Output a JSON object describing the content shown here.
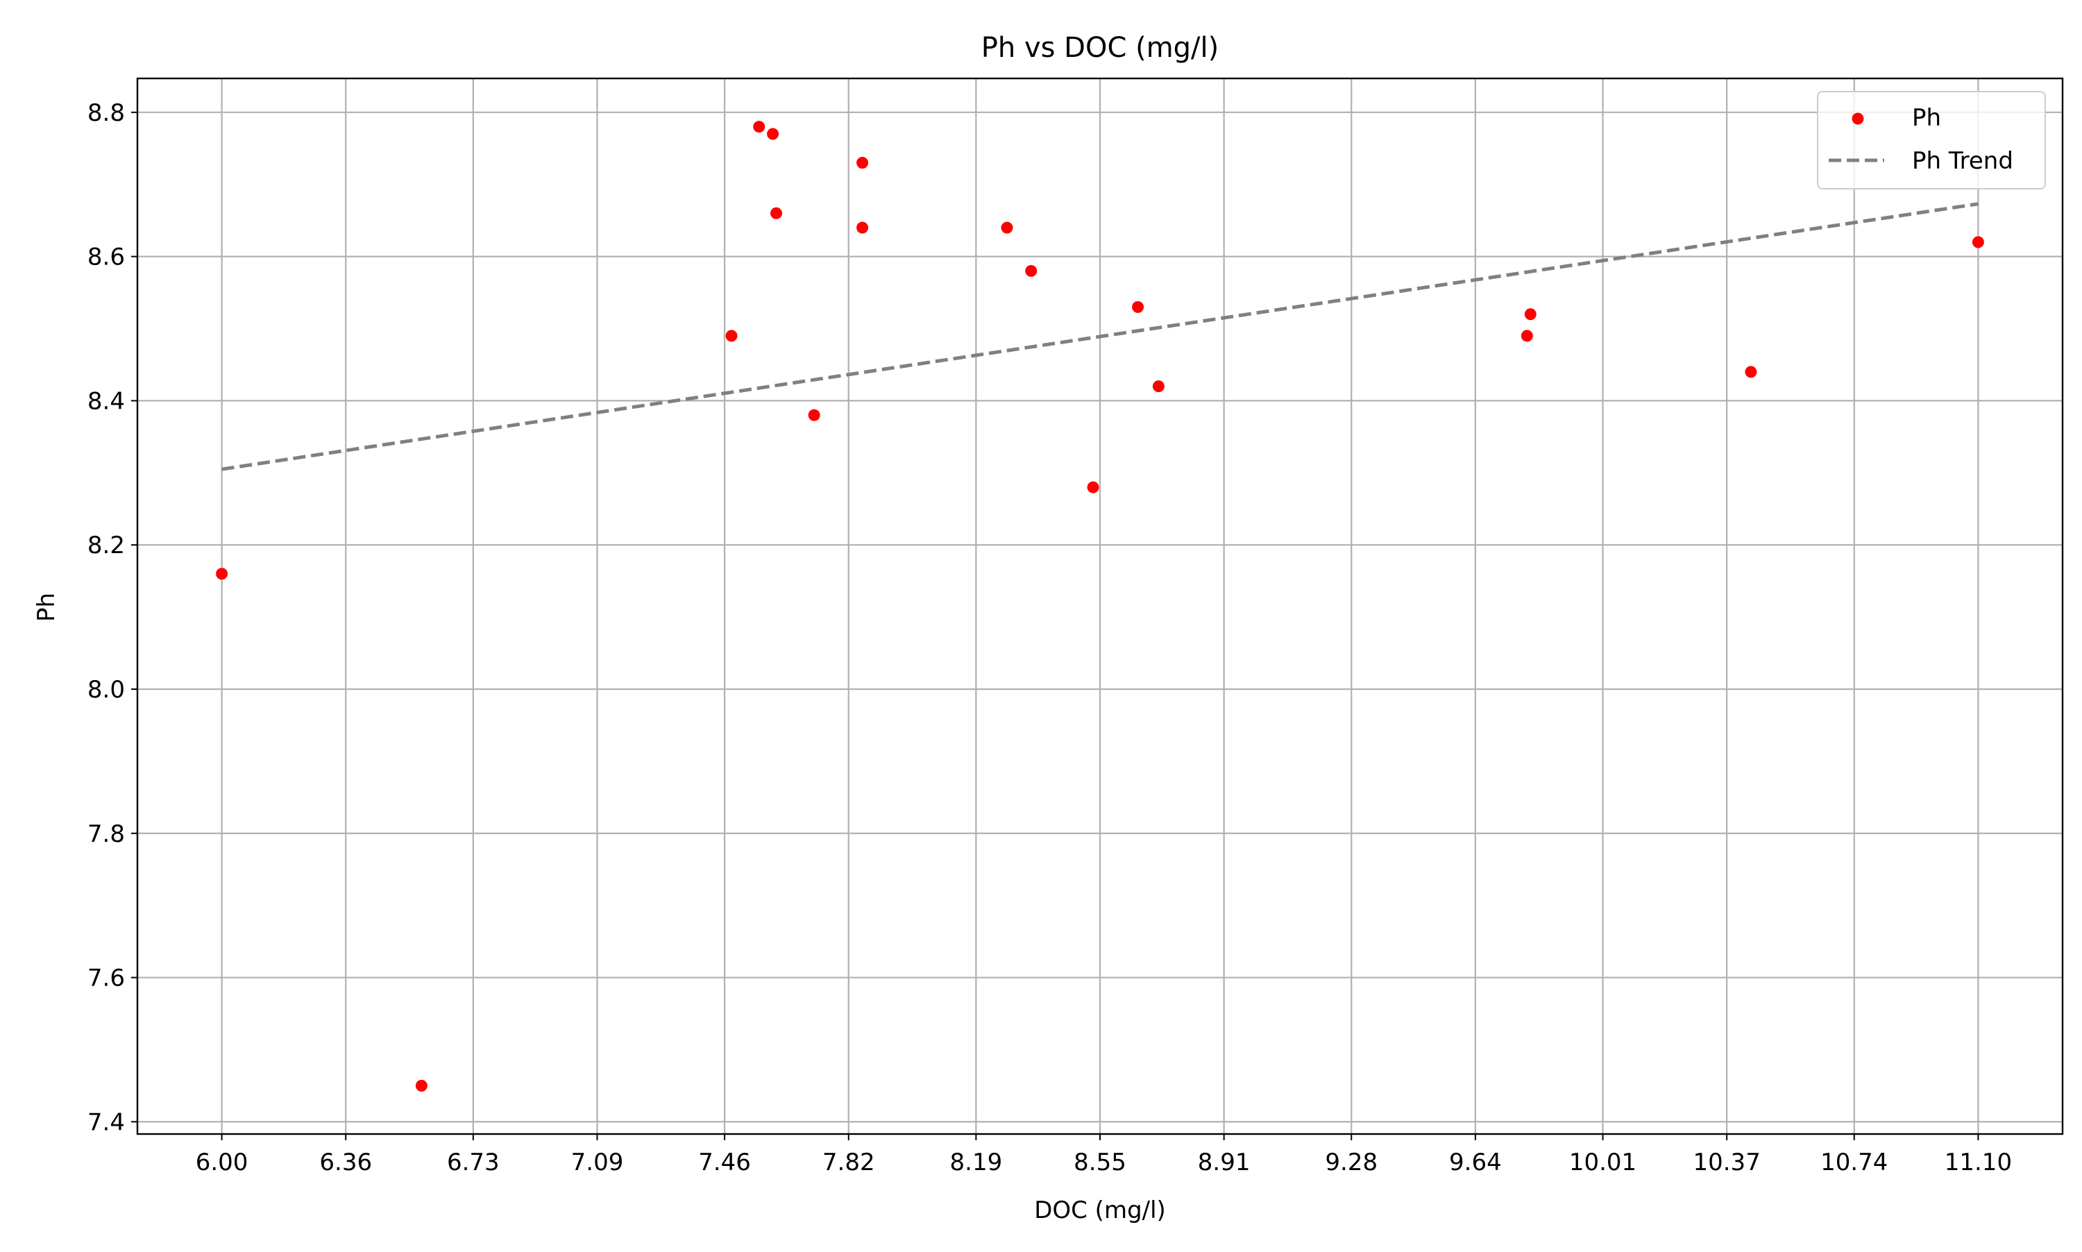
{
  "chart_data": {
    "type": "scatter",
    "title": "Ph vs DOC (mg/l)",
    "xlabel": "DOC (mg/l)",
    "ylabel": "Ph",
    "xlim": [
      5.755,
      11.345
    ],
    "ylim": [
      7.383,
      8.847
    ],
    "x_ticks": [
      "6.00",
      "6.36",
      "6.73",
      "7.09",
      "7.46",
      "7.82",
      "8.19",
      "8.55",
      "8.91",
      "9.28",
      "9.64",
      "10.01",
      "10.37",
      "10.74",
      "11.10"
    ],
    "y_ticks": [
      "7.4",
      "7.6",
      "7.8",
      "8.0",
      "8.2",
      "8.4",
      "8.6",
      "8.8"
    ],
    "grid": true,
    "legend_position": "upper right",
    "series": [
      {
        "name": "Ph",
        "kind": "scatter",
        "color": "#ff0000",
        "points": [
          {
            "x": 6.0,
            "y": 8.16
          },
          {
            "x": 6.58,
            "y": 7.45
          },
          {
            "x": 7.48,
            "y": 8.49
          },
          {
            "x": 7.56,
            "y": 8.78
          },
          {
            "x": 7.6,
            "y": 8.77
          },
          {
            "x": 7.61,
            "y": 8.66
          },
          {
            "x": 7.72,
            "y": 8.38
          },
          {
            "x": 7.86,
            "y": 8.73
          },
          {
            "x": 7.86,
            "y": 8.64
          },
          {
            "x": 8.28,
            "y": 8.64
          },
          {
            "x": 8.35,
            "y": 8.58
          },
          {
            "x": 8.53,
            "y": 8.28
          },
          {
            "x": 8.66,
            "y": 8.53
          },
          {
            "x": 8.72,
            "y": 8.42
          },
          {
            "x": 9.79,
            "y": 8.49
          },
          {
            "x": 9.8,
            "y": 8.52
          },
          {
            "x": 10.44,
            "y": 8.44
          },
          {
            "x": 11.1,
            "y": 8.62
          }
        ]
      },
      {
        "name": "Ph Trend",
        "kind": "line",
        "style": "dashed",
        "color": "#808080",
        "points": [
          {
            "x": 6.0,
            "y": 8.305
          },
          {
            "x": 11.1,
            "y": 8.673
          }
        ]
      }
    ]
  }
}
